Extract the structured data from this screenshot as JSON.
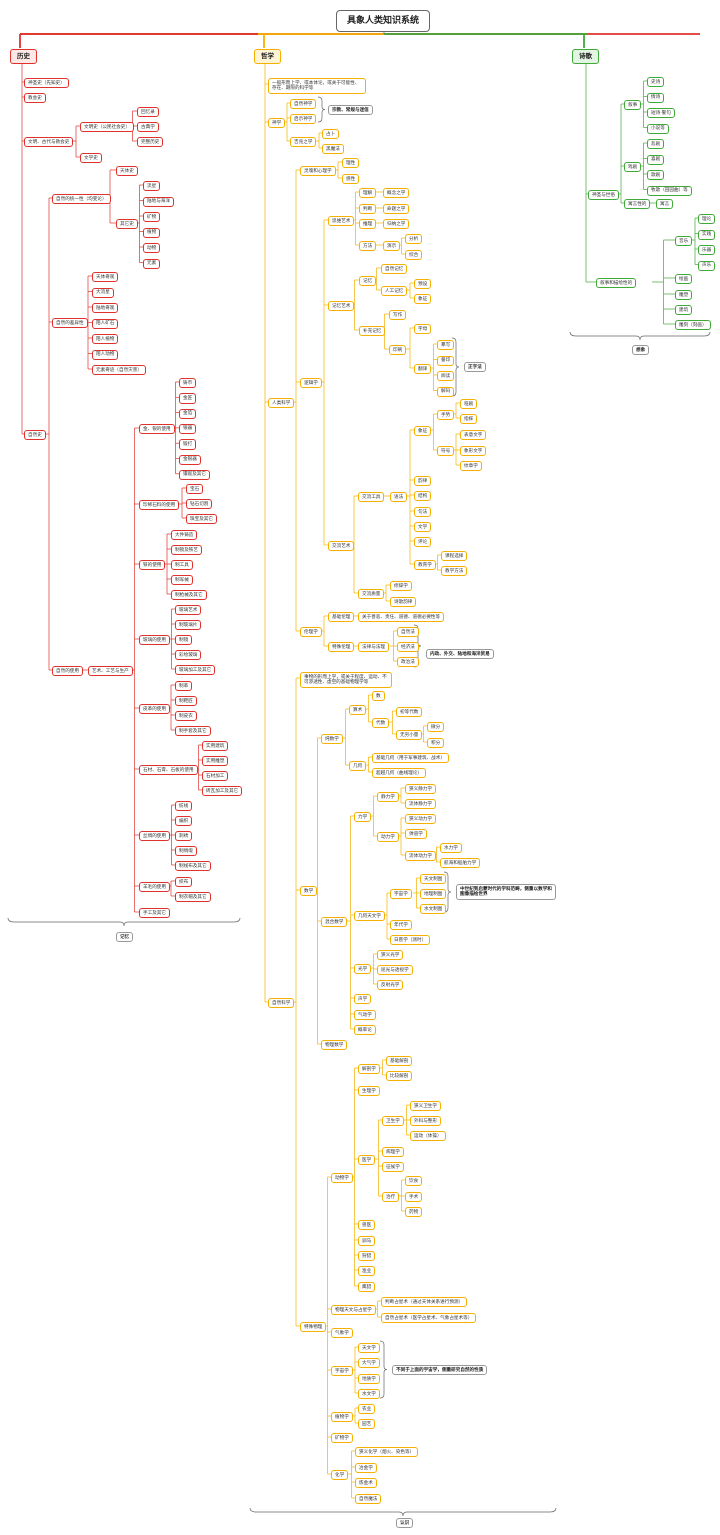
{
  "title": "具象人类知识系统",
  "colors": {
    "history": "#e0322d",
    "philosophy": "#f5b000",
    "poetry": "#3faa37",
    "root_line": "#f5b000"
  },
  "branches": {
    "history": {
      "label": "历史",
      "summary": "记忆"
    },
    "philosophy": {
      "label": "哲学",
      "summary": "认识"
    },
    "poetry": {
      "label": "诗歌",
      "summary": "想象"
    }
  },
  "history": {
    "n1": "神圣史（先知史）",
    "n2": "教会史",
    "n3": "文明、古代与教会史",
    "n3a": "文明史（公民社会史）",
    "n3a1": "回忆录",
    "n3a2": "古典学",
    "n3a3": "完整历史",
    "n3b": "文学史",
    "n4": "自然史",
    "n4a": "自然的统一性（均变论）",
    "n4a1": "天体史",
    "n4a2": "其它史",
    "n4a2a": "流星",
    "n4a2b": "陆地与海洋",
    "n4a2c": "矿物",
    "n4a2d": "植物",
    "n4a2e": "动物",
    "n4a2f": "元素",
    "n4b": "自然的差异性",
    "n4b1": "天体奇观",
    "n4b2": "大流星",
    "n4b3": "陆地奇观",
    "n4b4": "陌人矿石",
    "n4b5": "陌人植物",
    "n4b6": "陌人动物",
    "n4b7": "元素奇迹（自然灾害）",
    "n4c": "自然的使用",
    "n4c0": "艺术、工艺与生产",
    "g1": "金、银的使用",
    "g1a": "铸币",
    "g1b": "金匠",
    "g1c": "金箔",
    "g1d": "银器",
    "g1e": "锻打",
    "g1f": "金银器",
    "g1g": "镶嵌及其它",
    "g2": "珍稀石料的使用",
    "g2a": "宝石",
    "g2b": "钻石切割",
    "g2c": "珠宝及其它",
    "g3": "铁的使用",
    "g3a": "大件铸造",
    "g3b": "制锁及铁艺",
    "g3c": "制工具",
    "g3d": "制军械",
    "g3e": "制枪械及其它",
    "g4": "玻璃的使用",
    "g4a": "玻璃艺术",
    "g4b": "制玻璃片",
    "g4c": "制镜",
    "g4d": "彩绘玻璃",
    "g4e": "玻璃加工及其它",
    "g5": "皮革的使用",
    "g5a": "制革",
    "g5b": "制鞋匠",
    "g5c": "制皮衣",
    "g5d": "制手套及其它",
    "g6": "石材、石膏、石板的使用",
    "g6a": "实用建筑",
    "g6b": "实用雕塑",
    "g6c": "石材加工",
    "g6d": "砖瓦加工及其它",
    "g7": "丝绸的使用",
    "g7a": "纺线",
    "g7b": "编织",
    "g7c": "刺绣",
    "g7d": "制绸缎",
    "g7e": "制线布及其它",
    "g8": "羊毛的使用",
    "g8a": "织布",
    "g8b": "制衣帽及其它",
    "g9": "手工及其它"
  },
  "philosophy": {
    "theology": "神学",
    "t1": "自然神学",
    "t2": "启示神学",
    "t2note": "宗教、常规与迷信",
    "t3": "吉兆之学",
    "t3a": "占卜",
    "t3b": "黑魔法",
    "intro": "一般形而上学、或本体论，或关于可能性、存在、期限的科学等",
    "human": "人类科学",
    "h1": "灵魂和心理学",
    "h1a": "理性",
    "h1b": "感性",
    "logic": "逻辑学",
    "l1": "思维艺术",
    "l1a": "理解",
    "l1a1": "概念之学",
    "l1b": "判断",
    "l1b1": "命题之学",
    "l1c": "推理",
    "l1c1": "归纳之学",
    "l1d": "方法",
    "l1d1": "演示",
    "l1d1a": "分析",
    "l1d1b": "综合",
    "l2": "记忆艺术",
    "l2a": "记忆",
    "l2a1": "自然记忆",
    "l2a2": "人工记忆",
    "l2a2a": "预设",
    "l2a2b": "象征",
    "l2b": "补充记忆",
    "l2b1": "写作",
    "l2b2": "印刷",
    "l2b2a": "字母",
    "l2b2b": "翻译",
    "l2b2b1": "摹写",
    "l2b2b2": "誊印",
    "l2b2b3": "阅读",
    "l2b2b4": "解码",
    "l2note": "正字法",
    "l3": "交流艺术",
    "l3a": "交流工具",
    "l3a1": "语法",
    "l3a1a": "象征",
    "l3a1a1": "手势",
    "l3a1a1a": "哑剧",
    "l3a1a1b": "指挥",
    "l3a1a2": "符号",
    "l3a1a2a": "表意文字",
    "l3a1a2b": "象形文字",
    "l3a1a2c": "纹章学",
    "l3a1b": "韵律",
    "l3a1c": "结构",
    "l3a1d": "句法",
    "l3a1e": "文学",
    "l3a1f": "评论",
    "l3a1g": "教育学",
    "l3a1g1": "课程选择",
    "l3a1g2": "教学方法",
    "l3b": "交流质量",
    "l3b1": "修辞学",
    "l3b2": "诗歌韵律",
    "ethics": "伦理学",
    "e1": "基础伦理",
    "e1a": "关于善恶、责任、道德、道德必要性等",
    "e2": "特殊伦理",
    "e2a": "法律与法理",
    "e2a1": "自然法",
    "e2a2": "经济法",
    "e2a3": "政治法",
    "e2note": "内政、外交、陆地和海洋贸易",
    "nature": "自然科学",
    "nintro": "事物的形而上学，或关于程度、运动、不可渗透性、虚空的基础物理学等",
    "math": "数学",
    "m1": "纯数学",
    "m1a": "算术",
    "m1a1": "数",
    "m1a2": "代数",
    "m1a2a": "初等代数",
    "m1a2b": "无穷小量",
    "m1a2b1": "微分",
    "m1a2b2": "积分",
    "m1b": "几何",
    "m1b1": "基础几何（用于军事建筑、战术）",
    "m1b2": "超越几何（曲线理论）",
    "m2": "混合数学",
    "m2a": "力学",
    "m2a1": "静力学",
    "m2a1a": "狭义静力学",
    "m2a1b": "流体静力学",
    "m2a2": "动力学",
    "m2a2a": "狭义动力学",
    "m2a2b": "弹道学",
    "m2a2c": "流体动力学",
    "m2a2c1": "水力学",
    "m2a2c2": "航海和船舶力学",
    "m2b": "几何天文学",
    "m2b1": "宇宙学",
    "m2b1a": "天文制图",
    "m2b1b": "地理制图",
    "m2b1c": "水文制图",
    "m2bnote": "中世纪到启蒙时代的学科范畴，侧重以数学和图像描绘世界",
    "m2b2": "年代学",
    "m2b3": "日晷学（测时）",
    "m2c": "光学",
    "m2c1": "狭义光学",
    "m2c2": "屈光与透视学",
    "m2c3": "反射光学",
    "m2d": "声学",
    "m2e": "气动学",
    "m2f": "概率论",
    "m3": "物理数学",
    "phys": "特殊物理",
    "z": "动物学",
    "z1": "解剖学",
    "z1a": "基础解剖",
    "z1b": "比较解剖",
    "z2": "生理学",
    "z3": "医学",
    "z3a": "卫生学",
    "z3a1": "狭义卫生学",
    "z3a2": "外科与整形",
    "z3a3": "运动（体操）",
    "z3b": "病理学",
    "z3c": "征候学",
    "z3d": "治疗",
    "z3d1": "饮食",
    "z3d2": "手术",
    "z3d3": "药物",
    "z4": "兽医",
    "z5": "驯马",
    "z6": "狩猎",
    "z7": "渔业",
    "z8": "鹰猎",
    "p1": "物理天文与占星学",
    "p1a": "判断占星术（通过天体关系进行预测）",
    "p1b": "自然占星术（医学占星术、气象占星术等）",
    "p2": "气象学",
    "p3": "宇宙学",
    "p3a": "天文学",
    "p3b": "大气学",
    "p3c": "地质学",
    "p3d": "水文学",
    "p3note": "不同于上面的宇宙学，侧重研究自然的性质",
    "p4": "植物学",
    "p4a": "农业",
    "p4b": "园艺",
    "p5": "矿物学",
    "p6": "化学",
    "p6a": "狭义化学（烟火、染色等）",
    "p6b": "冶金学",
    "p6c": "炼金术",
    "p6d": "自然魔法"
  },
  "poetry": {
    "a": "神圣与世俗",
    "a1": "叙事",
    "a1a": "史诗",
    "a1b": "情诗",
    "a1c": "短诗·警句",
    "a1d": "小说等",
    "a2": "戏剧",
    "a2a": "悲剧",
    "a2b": "喜剧",
    "a2c": "歌剧",
    "a2d": "牧歌（田园曲）等",
    "a3": "寓言性的",
    "a3a": "寓言",
    "b": "叙事和描绘性的",
    "b1": "音乐",
    "b1a": "理论",
    "b1b": "实践",
    "b1c": "乐器",
    "b1d": "声乐",
    "b2": "绘画",
    "b3": "雕塑",
    "b4": "建筑",
    "b5": "雕刻（刻画）"
  }
}
